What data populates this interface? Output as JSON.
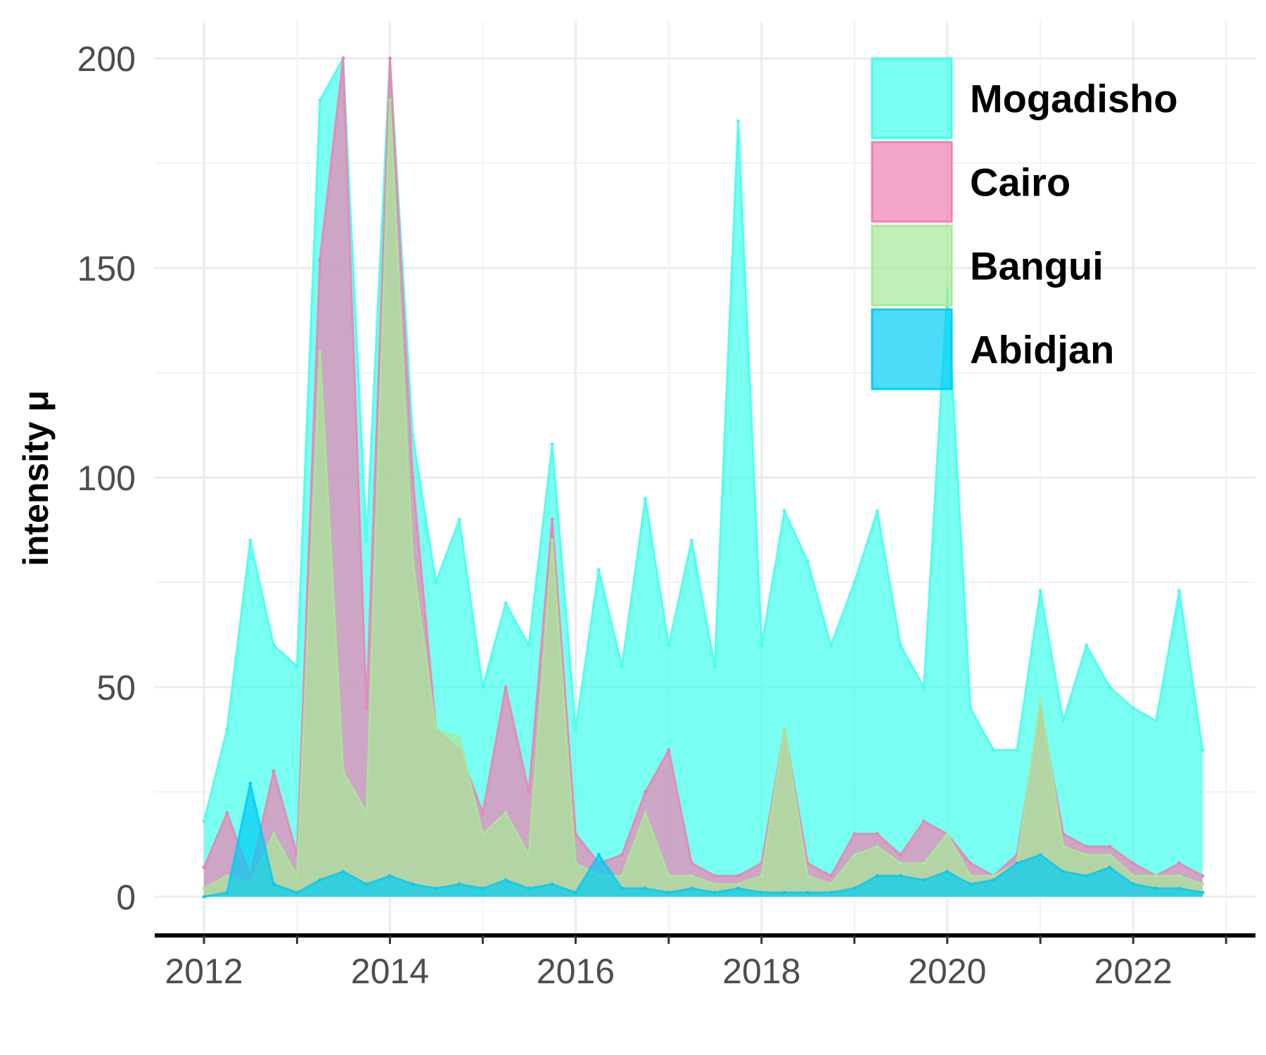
{
  "chart_data": {
    "type": "area",
    "title": "",
    "xlabel": "",
    "ylabel": "intensity μ",
    "xlim": [
      "2012-01-01",
      "2022-10-15"
    ],
    "ylim": [
      0,
      200
    ],
    "x_ticks": [
      "2012",
      "2014",
      "2016",
      "2018",
      "2020",
      "2022"
    ],
    "y_ticks": [
      "0",
      "50",
      "100",
      "150",
      "200"
    ],
    "grid": true,
    "legend_position": "top-right",
    "stacked": false,
    "series": [
      {
        "name": "Mogadisho",
        "color": "#40FFEC",
        "x": [
          "2012-01",
          "2012-04",
          "2012-07",
          "2012-10",
          "2013-01",
          "2013-04",
          "2013-07",
          "2013-10",
          "2014-01",
          "2014-04",
          "2014-07",
          "2014-10",
          "2015-01",
          "2015-04",
          "2015-07",
          "2015-10",
          "2016-01",
          "2016-04",
          "2016-07",
          "2016-10",
          "2017-01",
          "2017-04",
          "2017-07",
          "2017-10",
          "2018-01",
          "2018-04",
          "2018-07",
          "2018-10",
          "2019-01",
          "2019-04",
          "2019-07",
          "2019-10",
          "2020-01",
          "2020-04",
          "2020-07",
          "2020-10",
          "2021-01",
          "2021-04",
          "2021-07",
          "2021-10",
          "2022-01",
          "2022-04",
          "2022-07",
          "2022-10"
        ],
        "values": [
          18,
          40,
          85,
          60,
          55,
          190,
          200,
          85,
          200,
          110,
          75,
          90,
          50,
          70,
          60,
          108,
          40,
          78,
          55,
          95,
          60,
          85,
          55,
          185,
          60,
          92,
          80,
          60,
          75,
          92,
          60,
          50,
          145,
          45,
          35,
          35,
          73,
          42,
          60,
          50,
          45,
          42,
          73,
          35
        ]
      },
      {
        "name": "Cairo",
        "color": "#F080B0",
        "x": [
          "2012-01",
          "2012-04",
          "2012-07",
          "2012-10",
          "2013-01",
          "2013-04",
          "2013-07",
          "2013-10",
          "2014-01",
          "2014-04",
          "2014-07",
          "2014-10",
          "2015-01",
          "2015-04",
          "2015-07",
          "2015-10",
          "2016-01",
          "2016-04",
          "2016-07",
          "2016-10",
          "2017-01",
          "2017-04",
          "2017-07",
          "2017-10",
          "2018-01",
          "2018-04",
          "2018-07",
          "2018-10",
          "2019-01",
          "2019-04",
          "2019-07",
          "2019-10",
          "2020-01",
          "2020-04",
          "2020-07",
          "2020-10",
          "2021-01",
          "2021-04",
          "2021-07",
          "2021-10",
          "2022-01",
          "2022-04",
          "2022-07",
          "2022-10"
        ],
        "values": [
          7,
          20,
          5,
          30,
          10,
          152,
          200,
          45,
          200,
          100,
          40,
          35,
          20,
          50,
          25,
          90,
          15,
          8,
          10,
          25,
          35,
          8,
          5,
          5,
          8,
          40,
          8,
          5,
          15,
          15,
          10,
          18,
          15,
          8,
          5,
          10,
          45,
          15,
          12,
          12,
          8,
          5,
          8,
          5
        ]
      },
      {
        "name": "Bangui",
        "color": "#A8E898",
        "x": [
          "2012-01",
          "2012-04",
          "2012-07",
          "2012-10",
          "2013-01",
          "2013-04",
          "2013-07",
          "2013-10",
          "2014-01",
          "2014-04",
          "2014-07",
          "2014-10",
          "2015-01",
          "2015-04",
          "2015-07",
          "2015-10",
          "2016-01",
          "2016-04",
          "2016-07",
          "2016-10",
          "2017-01",
          "2017-04",
          "2017-07",
          "2017-10",
          "2018-01",
          "2018-04",
          "2018-07",
          "2018-10",
          "2019-01",
          "2019-04",
          "2019-07",
          "2019-10",
          "2020-01",
          "2020-04",
          "2020-07",
          "2020-10",
          "2021-01",
          "2021-04",
          "2021-07",
          "2021-10",
          "2022-01",
          "2022-04",
          "2022-07",
          "2022-10"
        ],
        "values": [
          2,
          5,
          3,
          15,
          5,
          130,
          30,
          20,
          190,
          80,
          40,
          38,
          15,
          20,
          10,
          85,
          8,
          5,
          5,
          20,
          5,
          5,
          3,
          3,
          5,
          40,
          5,
          3,
          10,
          12,
          8,
          8,
          15,
          5,
          5,
          8,
          47,
          12,
          10,
          10,
          5,
          5,
          5,
          3
        ]
      },
      {
        "name": "Abidjan",
        "color": "#00CCF5",
        "x": [
          "2012-01",
          "2012-04",
          "2012-07",
          "2012-10",
          "2013-01",
          "2013-04",
          "2013-07",
          "2013-10",
          "2014-01",
          "2014-04",
          "2014-07",
          "2014-10",
          "2015-01",
          "2015-04",
          "2015-07",
          "2015-10",
          "2016-01",
          "2016-04",
          "2016-07",
          "2016-10",
          "2017-01",
          "2017-04",
          "2017-07",
          "2017-10",
          "2018-01",
          "2018-04",
          "2018-07",
          "2018-10",
          "2019-01",
          "2019-04",
          "2019-07",
          "2019-10",
          "2020-01",
          "2020-04",
          "2020-07",
          "2020-10",
          "2021-01",
          "2021-04",
          "2021-07",
          "2021-10",
          "2022-01",
          "2022-04",
          "2022-07",
          "2022-10"
        ],
        "values": [
          0,
          1,
          27,
          3,
          1,
          4,
          6,
          3,
          5,
          3,
          2,
          3,
          2,
          4,
          2,
          3,
          1,
          10,
          2,
          2,
          1,
          2,
          1,
          2,
          1,
          1,
          1,
          1,
          2,
          5,
          5,
          4,
          6,
          3,
          4,
          8,
          10,
          6,
          5,
          7,
          3,
          2,
          2,
          1
        ]
      }
    ]
  }
}
